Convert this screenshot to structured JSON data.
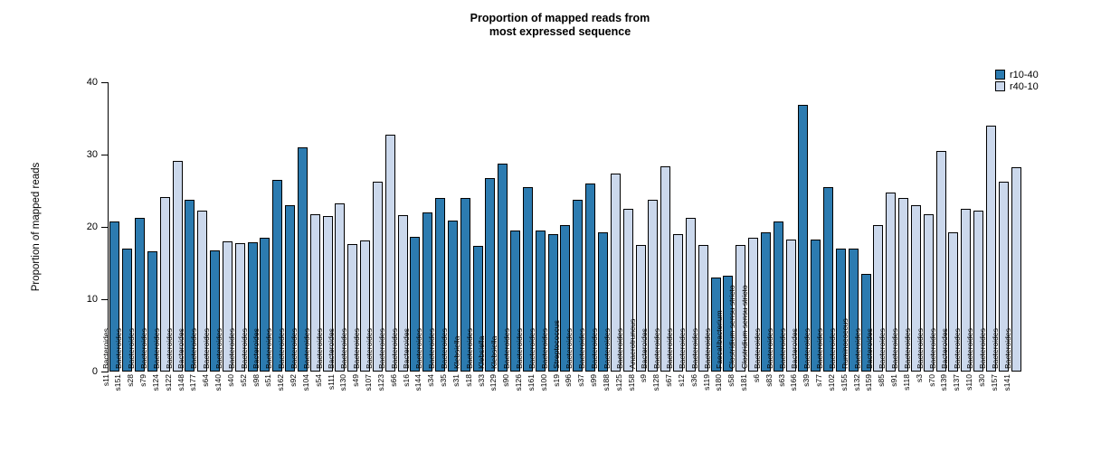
{
  "title": {
    "line1": "Proportion of mapped reads from",
    "line2": "most expressed sequence"
  },
  "y_axis": {
    "label": "Proportion of mapped reads",
    "ticks": [
      0,
      10,
      20,
      30,
      40
    ],
    "max": 40
  },
  "legend": [
    {
      "label": "r10-40",
      "color": "#2c7bb0"
    },
    {
      "label": "r40-10",
      "color": "#cbd8ec"
    }
  ],
  "chart_data": {
    "type": "bar",
    "title": "Proportion of mapped reads from most expressed sequence",
    "xlabel": "",
    "ylabel": "Proportion of mapped reads",
    "ylim": [
      0,
      40
    ],
    "grid": false,
    "legend_position": "top-right",
    "series_colors": {
      "r10-40": "#2c7bb0",
      "r40-10": "#cbd8ec"
    },
    "bars": [
      {
        "sample": "s11",
        "series": "r10-40",
        "value": 20.7,
        "taxon": "Bacteroides"
      },
      {
        "sample": "s151",
        "series": "r10-40",
        "value": 17.0,
        "taxon": "Bacteroides"
      },
      {
        "sample": "s28",
        "series": "r10-40",
        "value": 21.2,
        "taxon": "Bacteroides"
      },
      {
        "sample": "s79",
        "series": "r10-40",
        "value": 16.6,
        "taxon": "Bacteroides"
      },
      {
        "sample": "s124",
        "series": "r40-10",
        "value": 24.1,
        "taxon": "Bacteroides"
      },
      {
        "sample": "s122",
        "series": "r40-10",
        "value": 29.1,
        "taxon": "Bacteroides"
      },
      {
        "sample": "s148",
        "series": "r10-40",
        "value": 23.8,
        "taxon": "Bacteroides"
      },
      {
        "sample": "s177",
        "series": "r40-10",
        "value": 22.2,
        "taxon": "Bacteroides"
      },
      {
        "sample": "s64",
        "series": "r10-40",
        "value": 16.8,
        "taxon": "Bacteroides"
      },
      {
        "sample": "s140",
        "series": "r40-10",
        "value": 18.0,
        "taxon": "Bacteroides"
      },
      {
        "sample": "s40",
        "series": "r40-10",
        "value": 17.7,
        "taxon": "Bacteroides"
      },
      {
        "sample": "s52",
        "series": "r10-40",
        "value": 17.9,
        "taxon": "Bacteroides"
      },
      {
        "sample": "s98",
        "series": "r10-40",
        "value": 18.5,
        "taxon": "Bacteroides"
      },
      {
        "sample": "s51",
        "series": "r10-40",
        "value": 26.5,
        "taxon": "Bacteroides"
      },
      {
        "sample": "s162",
        "series": "r10-40",
        "value": 23.0,
        "taxon": "Bacteroides"
      },
      {
        "sample": "s92",
        "series": "r10-40",
        "value": 31.0,
        "taxon": "Bacteroides"
      },
      {
        "sample": "s104",
        "series": "r40-10",
        "value": 21.8,
        "taxon": "Bacteroides"
      },
      {
        "sample": "s54",
        "series": "r40-10",
        "value": 21.5,
        "taxon": "Bacteroides"
      },
      {
        "sample": "s111",
        "series": "r40-10",
        "value": 23.3,
        "taxon": "Bacteroides"
      },
      {
        "sample": "s130",
        "series": "r40-10",
        "value": 17.6,
        "taxon": "Bacteroides"
      },
      {
        "sample": "s49",
        "series": "r40-10",
        "value": 18.1,
        "taxon": "Bacteroides"
      },
      {
        "sample": "s107",
        "series": "r40-10",
        "value": 26.2,
        "taxon": "Bacteroides"
      },
      {
        "sample": "s123",
        "series": "r40-10",
        "value": 32.8,
        "taxon": "Bacteroides"
      },
      {
        "sample": "s66",
        "series": "r40-10",
        "value": 21.6,
        "taxon": "Bacteroides"
      },
      {
        "sample": "s16",
        "series": "r10-40",
        "value": 18.6,
        "taxon": "Bacteroides"
      },
      {
        "sample": "s144",
        "series": "r10-40",
        "value": 22.0,
        "taxon": "Bacteroides"
      },
      {
        "sample": "s34",
        "series": "r10-40",
        "value": 24.0,
        "taxon": "Bacteroides"
      },
      {
        "sample": "s35",
        "series": "r10-40",
        "value": 20.9,
        "taxon": "Bacteroides"
      },
      {
        "sample": "s31",
        "series": "r10-40",
        "value": 24.0,
        "taxon": "Klebsiella"
      },
      {
        "sample": "s18",
        "series": "r10-40",
        "value": 17.4,
        "taxon": "Bacteroides"
      },
      {
        "sample": "s33",
        "series": "r10-40",
        "value": 26.8,
        "taxon": "Klebsiella"
      },
      {
        "sample": "s129",
        "series": "r10-40",
        "value": 28.7,
        "taxon": "Klebsiella"
      },
      {
        "sample": "s90",
        "series": "r10-40",
        "value": 19.5,
        "taxon": "Bacteroides"
      },
      {
        "sample": "s126",
        "series": "r10-40",
        "value": 25.5,
        "taxon": "Bacteroides"
      },
      {
        "sample": "s161",
        "series": "r10-40",
        "value": 19.5,
        "taxon": "Bacteroides"
      },
      {
        "sample": "s100",
        "series": "r10-40",
        "value": 19.0,
        "taxon": "Bacteroides"
      },
      {
        "sample": "s19",
        "series": "r10-40",
        "value": 20.3,
        "taxon": "Streptococcus"
      },
      {
        "sample": "s96",
        "series": "r10-40",
        "value": 23.8,
        "taxon": "Bacteroides"
      },
      {
        "sample": "s37",
        "series": "r10-40",
        "value": 26.0,
        "taxon": "Bacteroides"
      },
      {
        "sample": "s99",
        "series": "r10-40",
        "value": 19.3,
        "taxon": "Bacteroides"
      },
      {
        "sample": "s188",
        "series": "r40-10",
        "value": 27.4,
        "taxon": "Bacteroides"
      },
      {
        "sample": "s125",
        "series": "r40-10",
        "value": 22.5,
        "taxon": "Bacteroides"
      },
      {
        "sample": "s158",
        "series": "r40-10",
        "value": 17.5,
        "taxon": "Anaerotruncus"
      },
      {
        "sample": "s9",
        "series": "r40-10",
        "value": 23.7,
        "taxon": "Bacteroides"
      },
      {
        "sample": "s128",
        "series": "r40-10",
        "value": 28.4,
        "taxon": "Bacteroides"
      },
      {
        "sample": "s67",
        "series": "r40-10",
        "value": 19.0,
        "taxon": "Bacteroides"
      },
      {
        "sample": "s12",
        "series": "r40-10",
        "value": 21.2,
        "taxon": "Bacteroides"
      },
      {
        "sample": "s36",
        "series": "r40-10",
        "value": 17.5,
        "taxon": "Bacteroides"
      },
      {
        "sample": "s119",
        "series": "r10-40",
        "value": 13.0,
        "taxon": "Bacteroides"
      },
      {
        "sample": "s180",
        "series": "r10-40",
        "value": 13.2,
        "taxon": "Faecalibacterium"
      },
      {
        "sample": "s58",
        "series": "r40-10",
        "value": 17.5,
        "taxon": "Clostridium sensu stricto"
      },
      {
        "sample": "s181",
        "series": "r40-10",
        "value": 18.5,
        "taxon": "Clostridium sensu stricto"
      },
      {
        "sample": "s6",
        "series": "r10-40",
        "value": 19.3,
        "taxon": "Bacteroides"
      },
      {
        "sample": "s83",
        "series": "r10-40",
        "value": 20.7,
        "taxon": "Bacteroides"
      },
      {
        "sample": "s63",
        "series": "r40-10",
        "value": 18.2,
        "taxon": "Bacteroides"
      },
      {
        "sample": "s166",
        "series": "r10-40",
        "value": 36.9,
        "taxon": "Bacteroides"
      },
      {
        "sample": "s39",
        "series": "r10-40",
        "value": 18.3,
        "taxon": "Bacteroides"
      },
      {
        "sample": "s77",
        "series": "r10-40",
        "value": 25.5,
        "taxon": "Bacteroides"
      },
      {
        "sample": "s102",
        "series": "r10-40",
        "value": 17.0,
        "taxon": "Bacteroides"
      },
      {
        "sample": "s155",
        "series": "r10-40",
        "value": 17.0,
        "taxon": "Ruminococcus"
      },
      {
        "sample": "s132",
        "series": "r10-40",
        "value": 13.5,
        "taxon": "Bacteroides"
      },
      {
        "sample": "s159",
        "series": "r40-10",
        "value": 20.3,
        "taxon": "Bacteroides"
      },
      {
        "sample": "s85",
        "series": "r40-10",
        "value": 24.8,
        "taxon": "Bacteroides"
      },
      {
        "sample": "s91",
        "series": "r40-10",
        "value": 24.0,
        "taxon": "Bacteroides"
      },
      {
        "sample": "s118",
        "series": "r40-10",
        "value": 23.0,
        "taxon": "Bacteroides"
      },
      {
        "sample": "s3",
        "series": "r40-10",
        "value": 21.8,
        "taxon": "Bacteroides"
      },
      {
        "sample": "s70",
        "series": "r40-10",
        "value": 30.5,
        "taxon": "Bacteroides"
      },
      {
        "sample": "s139",
        "series": "r40-10",
        "value": 19.2,
        "taxon": "Bacteroides"
      },
      {
        "sample": "s137",
        "series": "r40-10",
        "value": 22.5,
        "taxon": "Bacteroides"
      },
      {
        "sample": "s110",
        "series": "r40-10",
        "value": 22.3,
        "taxon": "Bacteroides"
      },
      {
        "sample": "s30",
        "series": "r40-10",
        "value": 34.0,
        "taxon": "Bacteroides"
      },
      {
        "sample": "s157",
        "series": "r40-10",
        "value": 26.3,
        "taxon": "Bacteroides"
      },
      {
        "sample": "s141",
        "series": "r40-10",
        "value": 28.3,
        "taxon": "Bacteroides"
      }
    ]
  }
}
